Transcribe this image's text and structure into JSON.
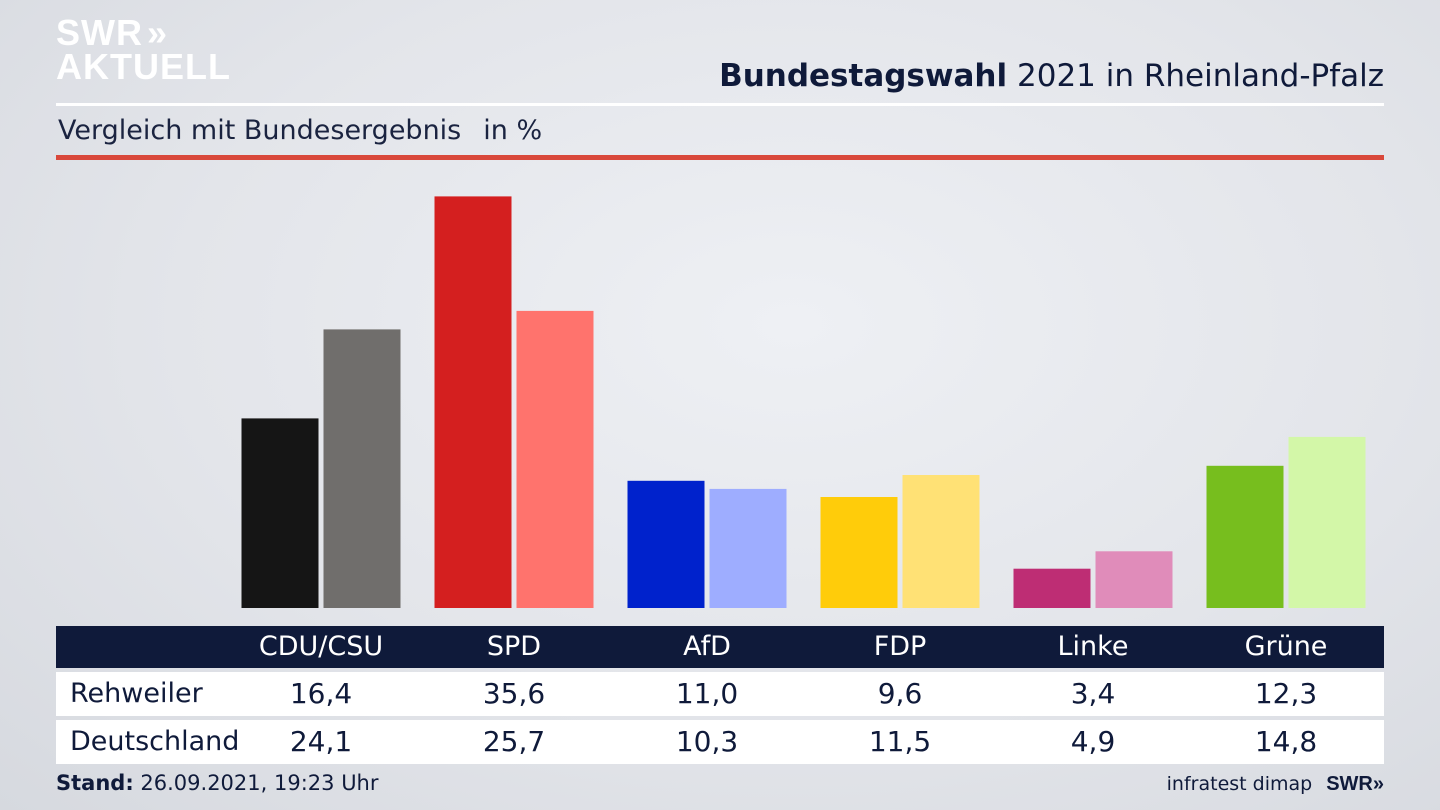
{
  "logo": {
    "line1": "SWR",
    "line1_mark": "»",
    "line2": "AKTUELL"
  },
  "header": {
    "title_bold": "Bundestagswahl",
    "title_rest": "2021 in Rheinland-Pfalz",
    "subtitle": "Vergleich mit Bundesergebnis",
    "unit": "in %"
  },
  "chart_data": {
    "type": "bar",
    "categories": [
      "CDU/CSU",
      "SPD",
      "AfD",
      "FDP",
      "Linke",
      "Grüne"
    ],
    "series": [
      {
        "name": "Rehweiler",
        "values": [
          16.4,
          35.6,
          11.0,
          9.6,
          3.4,
          12.3
        ]
      },
      {
        "name": "Deutschland",
        "values": [
          24.1,
          25.7,
          10.3,
          11.5,
          4.9,
          14.8
        ]
      }
    ],
    "value_labels": [
      [
        "16,4",
        "35,6",
        "11,0",
        "9,6",
        "3,4",
        "12,3"
      ],
      [
        "24,1",
        "25,7",
        "10,3",
        "11,5",
        "4,9",
        "14,8"
      ]
    ],
    "colors": [
      [
        "#151515",
        "#706e6c"
      ],
      [
        "#d41f1f",
        "#ff736d"
      ],
      [
        "#0022cc",
        "#9eadff"
      ],
      [
        "#ffcc0a",
        "#ffe175"
      ],
      [
        "#be2d74",
        "#e08cba"
      ],
      [
        "#77be1e",
        "#d3f7a8"
      ]
    ],
    "ylim": [
      0,
      36.5
    ],
    "grid": false
  },
  "footer": {
    "stand_label": "Stand:",
    "stand_value": "26.09.2021, 19:23 Uhr",
    "source": "infratest dimap",
    "brand": "SWR»"
  }
}
